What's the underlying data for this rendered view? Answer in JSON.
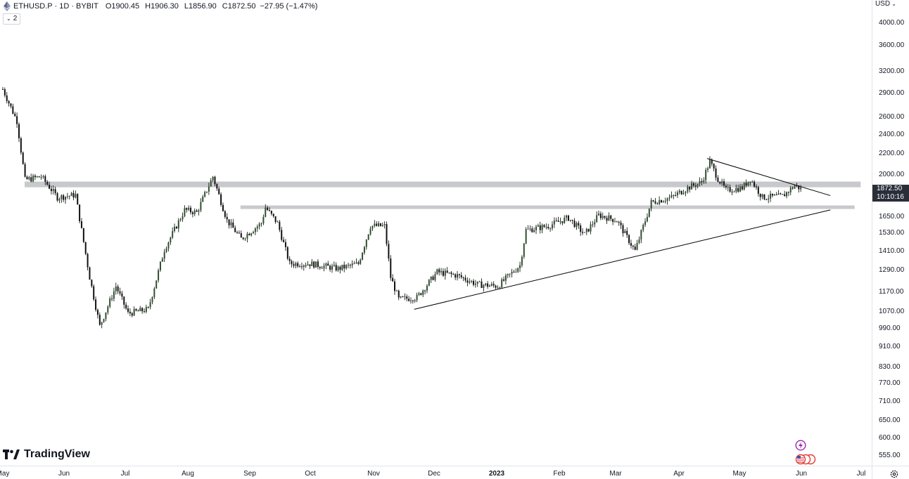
{
  "legend": {
    "symbol": "ETHUSD.P",
    "interval": "1D",
    "exchange": "BYBIT",
    "separator": "·",
    "open_key": "O",
    "open": "1900.45",
    "high_key": "H",
    "high": "1906.30",
    "low_key": "L",
    "low": "1856.90",
    "close_key": "C",
    "close": "1872.50",
    "change": "−27.95 (−1.47%)"
  },
  "indicators_toggle": {
    "count": "2"
  },
  "currency_menu": {
    "label": "USD"
  },
  "current_price": {
    "price": "1872.50",
    "countdown": "10:10:16"
  },
  "branding": {
    "name": "TradingView"
  },
  "colors": {
    "candle_up": "#2f4f2f",
    "candle_down": "#111111",
    "zone": "#c8c9cc",
    "trendline": "#000000",
    "axis_border": "#e0e3eb",
    "events_badge": "#9c27b0",
    "flags_badge": "#e53935"
  },
  "icons": {
    "symbol": "ethereum-icon",
    "events": "lightning-event-icon",
    "flags": "us-flag-icon",
    "settings": "gear-icon"
  },
  "chart_data": {
    "type": "candlestick",
    "symbol": "ETHUSD.P",
    "interval": "1D",
    "y_axis": {
      "scale": "log",
      "ticks": [
        "4000.00",
        "3600.00",
        "3200.00",
        "2900.00",
        "2600.00",
        "2400.00",
        "2200.00",
        "2000.00",
        "1650.00",
        "1530.00",
        "1410.00",
        "1290.00",
        "1170.00",
        "1070.00",
        "990.00",
        "910.00",
        "830.00",
        "770.00",
        "710.00",
        "650.00",
        "600.00",
        "555.00"
      ],
      "range": [
        530,
        4300
      ]
    },
    "x_axis": {
      "ticks": [
        "May",
        "Jun",
        "Jul",
        "Aug",
        "Sep",
        "Oct",
        "Nov",
        "Dec",
        "2023",
        "Feb",
        "Mar",
        "Apr",
        "May",
        "Jun",
        "Jul"
      ],
      "bold_ticks": [
        "2023"
      ]
    },
    "price_path": [
      [
        "2022-05-01",
        2950
      ],
      [
        "2022-05-08",
        2550
      ],
      [
        "2022-05-12",
        1950
      ],
      [
        "2022-05-20",
        1980
      ],
      [
        "2022-05-28",
        1800
      ],
      [
        "2022-06-06",
        1820
      ],
      [
        "2022-06-13",
        1250
      ],
      [
        "2022-06-18",
        1000
      ],
      [
        "2022-06-26",
        1200
      ],
      [
        "2022-07-02",
        1060
      ],
      [
        "2022-07-12",
        1080
      ],
      [
        "2022-07-20",
        1420
      ],
      [
        "2022-07-30",
        1700
      ],
      [
        "2022-08-05",
        1680
      ],
      [
        "2022-08-13",
        1980
      ],
      [
        "2022-08-20",
        1620
      ],
      [
        "2022-08-27",
        1490
      ],
      [
        "2022-09-06",
        1600
      ],
      [
        "2022-09-08",
        1720
      ],
      [
        "2022-09-14",
        1600
      ],
      [
        "2022-09-20",
        1330
      ],
      [
        "2022-09-30",
        1330
      ],
      [
        "2022-10-14",
        1300
      ],
      [
        "2022-10-24",
        1330
      ],
      [
        "2022-10-30",
        1580
      ],
      [
        "2022-11-06",
        1580
      ],
      [
        "2022-11-09",
        1250
      ],
      [
        "2022-11-13",
        1130
      ],
      [
        "2022-11-22",
        1140
      ],
      [
        "2022-12-02",
        1280
      ],
      [
        "2022-12-12",
        1260
      ],
      [
        "2022-12-22",
        1210
      ],
      [
        "2023-01-01",
        1200
      ],
      [
        "2023-01-12",
        1320
      ],
      [
        "2023-01-15",
        1550
      ],
      [
        "2023-01-26",
        1580
      ],
      [
        "2023-02-05",
        1640
      ],
      [
        "2023-02-13",
        1520
      ],
      [
        "2023-02-20",
        1660
      ],
      [
        "2023-03-01",
        1620
      ],
      [
        "2023-03-10",
        1410
      ],
      [
        "2023-03-18",
        1760
      ],
      [
        "2023-03-28",
        1800
      ],
      [
        "2023-04-05",
        1880
      ],
      [
        "2023-04-12",
        1930
      ],
      [
        "2023-04-16",
        2120
      ],
      [
        "2023-04-20",
        1960
      ],
      [
        "2023-04-24",
        1860
      ],
      [
        "2023-05-02",
        1880
      ],
      [
        "2023-05-06",
        1960
      ],
      [
        "2023-05-12",
        1800
      ],
      [
        "2023-05-22",
        1810
      ],
      [
        "2023-05-28",
        1900
      ],
      [
        "2023-05-31",
        1872.5
      ]
    ],
    "zones": [
      {
        "from": "2022-05-01",
        "to": "2023-06-30",
        "low": 1885,
        "high": 1935
      },
      {
        "from": "2022-08-27",
        "to": "2023-06-27",
        "low": 1707,
        "high": 1735
      }
    ],
    "trendlines": [
      {
        "from": [
          "2022-11-21",
          1080
        ],
        "to": [
          "2023-06-15",
          1700
        ]
      },
      {
        "from": [
          "2023-04-15",
          2150
        ],
        "to": [
          "2023-06-15",
          1815
        ]
      }
    ],
    "last": {
      "open": 1900.45,
      "high": 1906.3,
      "low": 1856.9,
      "close": 1872.5,
      "change": -27.95,
      "change_pct": -1.47
    }
  }
}
